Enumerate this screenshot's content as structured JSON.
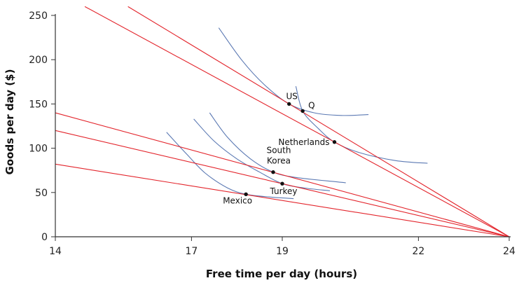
{
  "chart_data": {
    "type": "line",
    "title": "",
    "xlabel": "Free time per day (hours)",
    "ylabel": "Goods per day ($)",
    "xlim": [
      14,
      24
    ],
    "ylim": [
      0,
      250
    ],
    "xticks": [
      14,
      17,
      19,
      22,
      24
    ],
    "yticks": [
      0,
      50,
      100,
      150,
      200,
      250
    ],
    "grid": false,
    "colors": {
      "budget_line": "#e3242b",
      "indifference_curve": "#5b79b3",
      "axis": "#333333",
      "point": "#111111"
    },
    "budget_lines": [
      {
        "x": [
          14.65,
          24
        ],
        "y": [
          260,
          0
        ]
      },
      {
        "x": [
          15.6,
          24
        ],
        "y": [
          260,
          0
        ]
      },
      {
        "x": [
          14,
          24
        ],
        "y": [
          140,
          0
        ]
      },
      {
        "x": [
          14,
          24
        ],
        "y": [
          120,
          0
        ]
      },
      {
        "x": [
          14,
          24
        ],
        "y": [
          82,
          0
        ]
      }
    ],
    "indifference_curves": [
      {
        "points": [
          [
            17.6,
            236
          ],
          [
            18.1,
            200
          ],
          [
            18.6,
            172
          ],
          [
            19.15,
            150
          ],
          [
            19.7,
            140
          ],
          [
            20.3,
            137
          ],
          [
            20.9,
            138
          ]
        ]
      },
      {
        "points": [
          [
            19.3,
            170
          ],
          [
            19.45,
            142
          ],
          [
            19.8,
            122
          ],
          [
            20.15,
            107
          ],
          [
            20.7,
            95
          ],
          [
            21.5,
            86
          ],
          [
            22.2,
            83
          ]
        ]
      },
      {
        "points": [
          [
            17.4,
            140
          ],
          [
            17.8,
            112
          ],
          [
            18.3,
            88
          ],
          [
            18.8,
            73
          ],
          [
            19.3,
            67
          ],
          [
            20.2,
            62
          ],
          [
            20.4,
            61
          ]
        ]
      },
      {
        "points": [
          [
            17.05,
            133
          ],
          [
            17.5,
            108
          ],
          [
            18.0,
            88
          ],
          [
            18.5,
            73
          ],
          [
            19.0,
            60
          ],
          [
            19.5,
            55
          ],
          [
            20.05,
            52
          ]
        ]
      },
      {
        "points": [
          [
            16.45,
            118
          ],
          [
            16.9,
            93
          ],
          [
            17.3,
            72
          ],
          [
            17.8,
            55
          ],
          [
            18.2,
            48
          ],
          [
            18.7,
            45
          ],
          [
            19.25,
            43
          ]
        ]
      }
    ],
    "points": [
      {
        "name": "US",
        "x": 19.15,
        "y": 150
      },
      {
        "name": "Q",
        "x": 19.45,
        "y": 142
      },
      {
        "name": "Netherlands",
        "x": 20.15,
        "y": 107
      },
      {
        "name": "South Korea",
        "x": 18.8,
        "y": 73
      },
      {
        "name": "Turkey",
        "x": 19.0,
        "y": 60
      },
      {
        "name": "Mexico",
        "x": 18.2,
        "y": 48
      }
    ]
  }
}
